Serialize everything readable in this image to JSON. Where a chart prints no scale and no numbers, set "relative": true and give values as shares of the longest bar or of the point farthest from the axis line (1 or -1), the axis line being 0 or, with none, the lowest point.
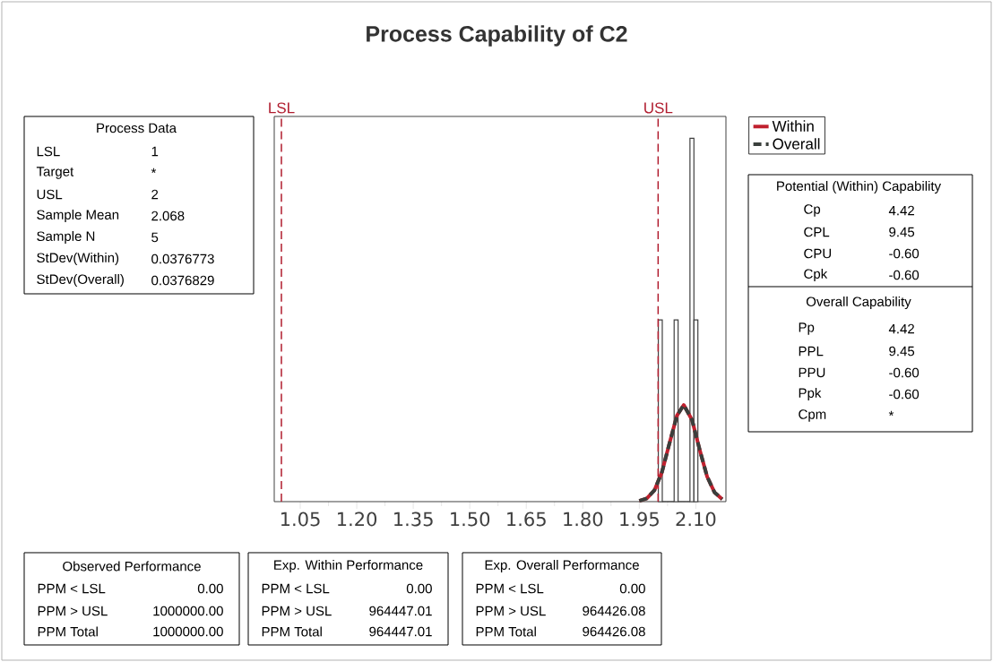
{
  "chart_data": {
    "type": "histogram",
    "title": "Process Capability of C2",
    "bins": [
      2.0005,
      2.011,
      2.0215,
      2.032,
      2.0425,
      2.053,
      2.0635,
      2.074,
      2.0845,
      2.095,
      2.1055
    ],
    "values": [
      0.5,
      0,
      0,
      0,
      0.5,
      0,
      0,
      0,
      1,
      0.5
    ],
    "relative": true,
    "color": "#404040",
    "series": [
      {
        "name": "Within",
        "type": "line",
        "color": "#c0202e",
        "line_style": "solid",
        "x": [
          1.95,
          1.97,
          1.99,
          2.01,
          2.03,
          2.05,
          2.068,
          2.09,
          2.11,
          2.13,
          2.15,
          2.17
        ],
        "values": [
          0.002,
          0.009,
          0.031,
          0.081,
          0.16,
          0.237,
          0.266,
          0.225,
          0.144,
          0.069,
          0.025,
          0.007
        ]
      },
      {
        "name": "Overall",
        "type": "line",
        "color": "#3a3f3c",
        "line_style": "dashed",
        "x": [
          1.95,
          1.97,
          1.99,
          2.01,
          2.03,
          2.05,
          2.068,
          2.09,
          2.11,
          2.13,
          2.15,
          2.17
        ],
        "values": [
          0.002,
          0.009,
          0.031,
          0.081,
          0.16,
          0.237,
          0.266,
          0.225,
          0.144,
          0.069,
          0.025,
          0.007
        ]
      }
    ],
    "xlim": [
      0.981,
      2.18
    ],
    "xticks": [
      1.05,
      {
        "value": 1.2,
        "label": "1.20"
      },
      1.35,
      {
        "value": 1.5,
        "label": "1.50"
      },
      1.65,
      {
        "value": 1.8,
        "label": "1.80"
      },
      1.95,
      {
        "value": 2.1,
        "label": "2.10"
      }
    ],
    "ref_lines": [
      {
        "axis": "x",
        "value": 1,
        "label": "LSL",
        "color": "#b01c2e",
        "line_style": "dashed"
      },
      {
        "axis": "x",
        "value": 2,
        "label": "USL",
        "color": "#b01c2e",
        "line_style": "dashed"
      }
    ],
    "legend": "right",
    "grid": false,
    "annotations": [
      "Process Data",
      "LSL",
      "1",
      "Target",
      "*",
      "USL",
      "2",
      "Sample Mean",
      "2.068",
      "Sample N",
      "5",
      "StDev(Within)",
      "0.0376773",
      "StDev(Overall)",
      "0.0376829",
      "Potential (Within) Capability",
      "Cp",
      "4.42",
      "CPL",
      "9.45",
      "CPU",
      "-0.60",
      "Cpk",
      "-0.60",
      "Overall Capability",
      "Pp",
      "4.42",
      "PPL",
      "9.45",
      "PPU",
      "-0.60",
      "Ppk",
      "-0.60",
      "Cpm",
      "*",
      "Observed Performance",
      "PPM < LSL",
      "0.00",
      "PPM > USL",
      "1000000.00",
      "PPM Total",
      "1000000.00",
      "Exp. Within Performance",
      "PPM < LSL",
      "0.00",
      "PPM > USL",
      "964447.01",
      "PPM Total",
      "964447.01",
      "Exp. Overall Performance",
      "PPM < LSL",
      "0.00",
      "PPM > USL",
      "964426.08",
      "PPM Total",
      "964426.08"
    ]
  }
}
